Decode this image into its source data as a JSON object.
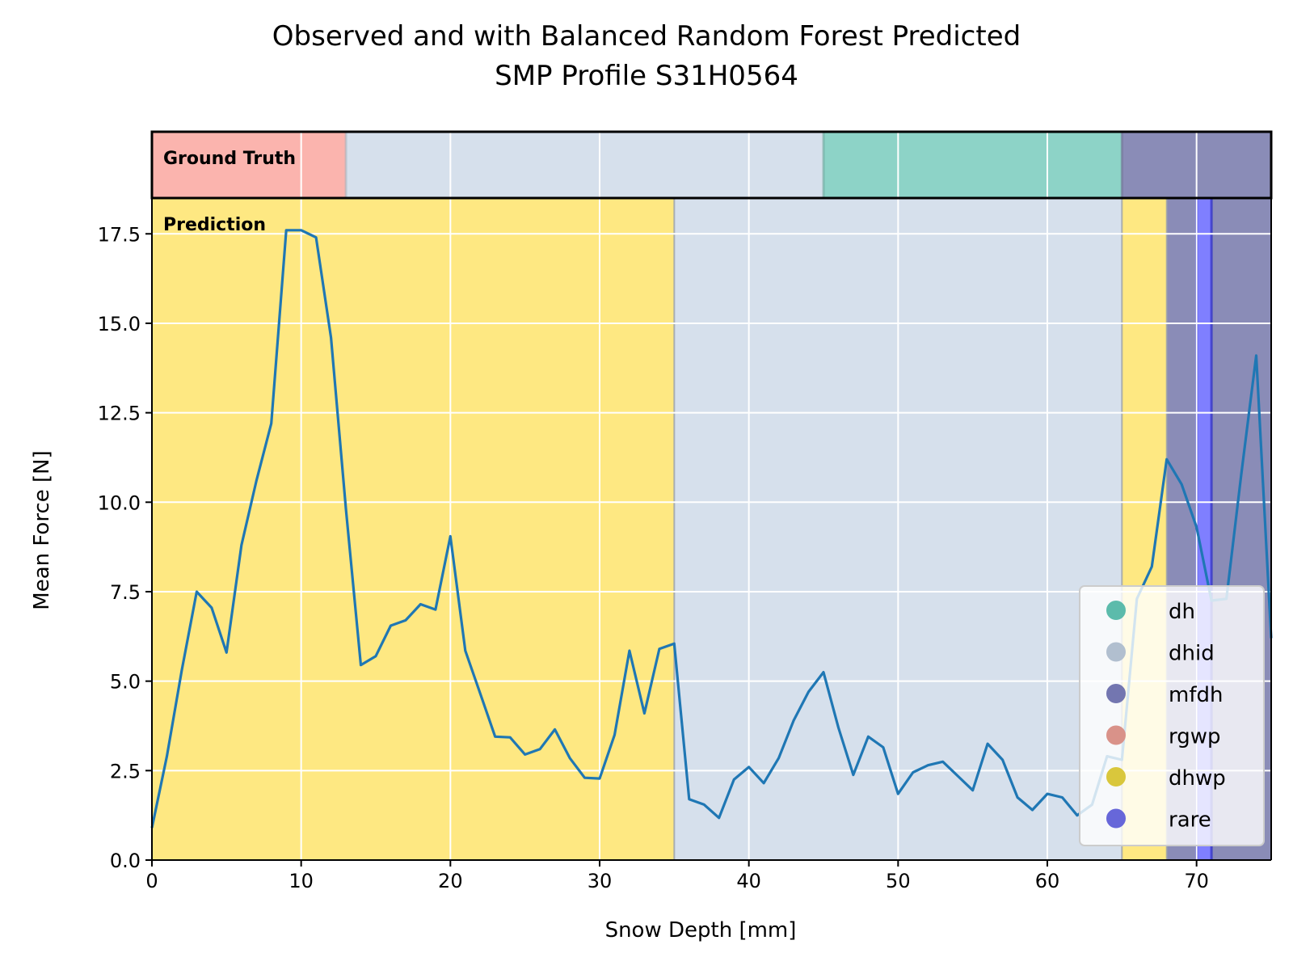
{
  "chart_data": {
    "type": "line",
    "title": "Observed and with Balanced Random Forest Predicted",
    "subtitle": "SMP Profile S31H0564",
    "xlabel": "Snow Depth [mm]",
    "ylabel": "Mean Force [N]",
    "xlim": [
      0,
      75
    ],
    "ylim": [
      0,
      18.5
    ],
    "xticks": [
      0,
      10,
      20,
      30,
      40,
      50,
      60,
      70
    ],
    "xtick_labels": [
      "0",
      "10",
      "20",
      "30",
      "40",
      "50",
      "60",
      "70"
    ],
    "yticks": [
      0,
      2.5,
      5,
      7.5,
      10,
      12.5,
      15,
      17.5
    ],
    "ytick_labels": [
      "0.0",
      "2.5",
      "5.0",
      "7.5",
      "10.0",
      "12.5",
      "15.0",
      "17.5"
    ],
    "grid": true,
    "legend_position": "lower right",
    "line_color": "#1f77b4",
    "ground_truth_label": "Ground Truth",
    "prediction_label": "Prediction",
    "classes": [
      {
        "name": "dh",
        "color": "#8dd3c7"
      },
      {
        "name": "dhid",
        "color": "#d6e0ec"
      },
      {
        "name": "mfdh",
        "color": "#8a8cb7"
      },
      {
        "name": "rgwp",
        "color": "#fbb4ae"
      },
      {
        "name": "dhwp",
        "color": "#fee882"
      },
      {
        "name": "rare",
        "color": "#7f7fff"
      }
    ],
    "ground_truth_segments": [
      {
        "class": "rgwp",
        "start": 0,
        "end": 13
      },
      {
        "class": "dhid",
        "start": 13,
        "end": 45
      },
      {
        "class": "dh",
        "start": 45,
        "end": 65
      },
      {
        "class": "mfdh",
        "start": 65,
        "end": 75
      }
    ],
    "prediction_segments": [
      {
        "class": "dhwp",
        "start": 0,
        "end": 35
      },
      {
        "class": "dhid",
        "start": 35,
        "end": 65
      },
      {
        "class": "dhwp",
        "start": 65,
        "end": 68
      },
      {
        "class": "mfdh",
        "start": 68,
        "end": 70
      },
      {
        "class": "rare",
        "start": 70,
        "end": 71
      },
      {
        "class": "mfdh",
        "start": 71,
        "end": 75
      }
    ],
    "series": [
      {
        "x": [
          0,
          1,
          2,
          3,
          4,
          5,
          6,
          7,
          8,
          9,
          10,
          11,
          12,
          13,
          14,
          15,
          16,
          17,
          18,
          19,
          20,
          21,
          22,
          23,
          24,
          25,
          26,
          27,
          28,
          29,
          30,
          31,
          32,
          33,
          34,
          35,
          36,
          37,
          38,
          39,
          40,
          41,
          42,
          43,
          44,
          45,
          46,
          47,
          48,
          49,
          50,
          51,
          52,
          53,
          54,
          55,
          56,
          57,
          58,
          59,
          60,
          61,
          62,
          63,
          64,
          65,
          66,
          67,
          68,
          69,
          70,
          71,
          72,
          73,
          74,
          75
        ],
        "values": [
          0.9,
          2.9,
          5.3,
          7.5,
          7.05,
          5.8,
          8.8,
          10.6,
          12.2,
          17.6,
          17.6,
          17.4,
          14.6,
          9.8,
          5.45,
          5.7,
          6.55,
          6.7,
          7.15,
          7.0,
          9.05,
          5.85,
          4.65,
          3.45,
          3.43,
          2.95,
          3.1,
          3.65,
          2.85,
          2.3,
          2.28,
          3.5,
          5.85,
          4.1,
          5.9,
          6.05,
          1.7,
          1.55,
          1.18,
          2.25,
          2.6,
          2.15,
          2.85,
          3.9,
          4.7,
          5.25,
          3.7,
          2.38,
          3.45,
          3.15,
          1.85,
          2.45,
          2.65,
          2.75,
          2.35,
          1.95,
          3.25,
          2.8,
          1.75,
          1.4,
          1.85,
          1.75,
          1.25,
          1.55,
          2.9,
          2.8,
          7.3,
          8.2,
          11.2,
          10.5,
          9.3,
          7.25,
          7.3,
          10.8,
          14.1,
          6.2
        ]
      }
    ]
  }
}
